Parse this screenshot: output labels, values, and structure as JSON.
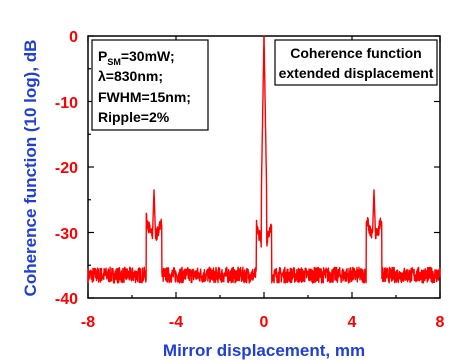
{
  "chart_data": {
    "type": "line",
    "xlabel": "Mirror displacement, mm",
    "ylabel": "Coherence function (10 log), dB",
    "ylabel_unit_suffix": "dB",
    "xlim": [
      -8,
      8
    ],
    "ylim": [
      -40,
      0
    ],
    "x_ticks": [
      -8,
      -4,
      0,
      4,
      8
    ],
    "y_ticks": [
      0,
      -10,
      -20,
      -30,
      -40
    ],
    "x_tick_labels": [
      "-8",
      "-4",
      "0",
      "4",
      "8"
    ],
    "y_tick_labels": [
      "0",
      "-10",
      "-20",
      "-30",
      "-40"
    ],
    "grid": false,
    "colors": {
      "series": "#ff0000",
      "axis_title": "#1f3fd8",
      "tick_labels": "#ff0000",
      "axes": "#000000"
    },
    "series": [
      {
        "baseline_db": -36.5,
        "noise_db": 1.2,
        "peaks": [
          {
            "x": -5.0,
            "y": -23.5,
            "width": 0.04
          },
          {
            "x": 0.0,
            "y": 0.0,
            "width": 0.02
          },
          {
            "x": 5.0,
            "y": -23.5,
            "width": 0.04
          }
        ],
        "shoulders": [
          {
            "x": -5.0,
            "y": -31.5
          },
          {
            "x": 0.0,
            "y": -32.5
          },
          {
            "x": 5.0,
            "y": -31.5
          }
        ]
      }
    ],
    "annotations": {
      "params_box": {
        "line1_main": "P",
        "line1_sub": "SM",
        "line1_rest": "=30mW;",
        "line2": "λ=830nm;",
        "line3": "FWHM=15nm;",
        "line4": "Ripple=2%"
      },
      "title_box": {
        "line1": "Coherence function",
        "line2": "extended displacement"
      }
    }
  }
}
